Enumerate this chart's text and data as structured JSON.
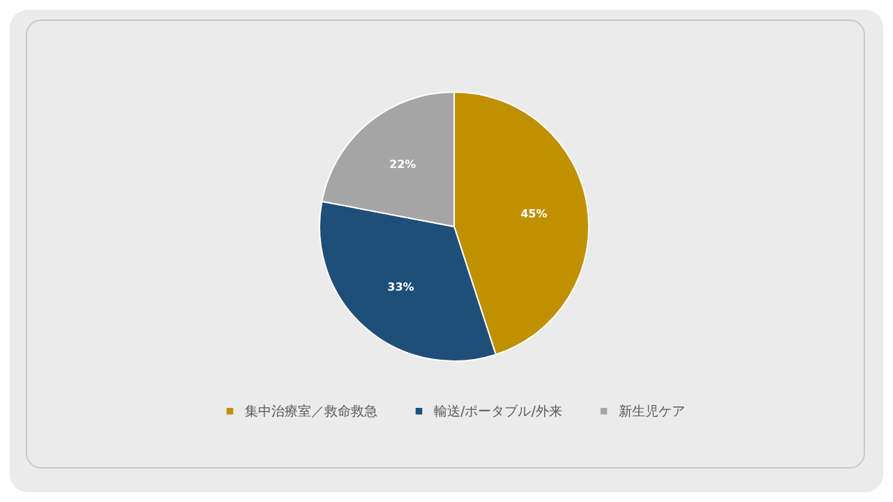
{
  "chart_data": {
    "type": "pie",
    "categories": [
      "集中治療室／救命救急",
      "輸送/ポータブル/外来",
      "新生児ケア"
    ],
    "values": [
      45,
      33,
      22
    ],
    "colors": [
      "#bf9000",
      "#1f4e79",
      "#a5a5a5"
    ],
    "value_labels": [
      "45%",
      "33%",
      "22%"
    ],
    "legend": "bottom"
  }
}
